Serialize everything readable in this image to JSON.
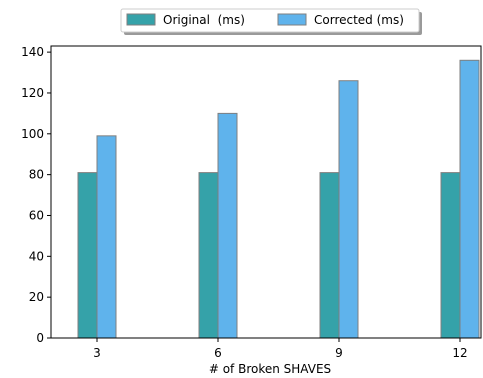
{
  "chart_data": {
    "type": "bar",
    "xlabel": "# of Broken SHAVES",
    "ylabel": "",
    "categories": [
      "3",
      "6",
      "9",
      "12"
    ],
    "ylim": [
      0,
      143
    ],
    "yticks": [
      0,
      20,
      40,
      60,
      80,
      100,
      120,
      140
    ],
    "grid": false,
    "legend": "top-center",
    "series": [
      {
        "name": "Original  (ms)",
        "values": [
          81,
          81,
          81,
          81
        ],
        "color": "#35a2a9"
      },
      {
        "name": "Corrected (ms)",
        "values": [
          99,
          110,
          126,
          136
        ],
        "color": "#5fb3ec"
      }
    ],
    "edge_color": "#7f7f7f"
  }
}
